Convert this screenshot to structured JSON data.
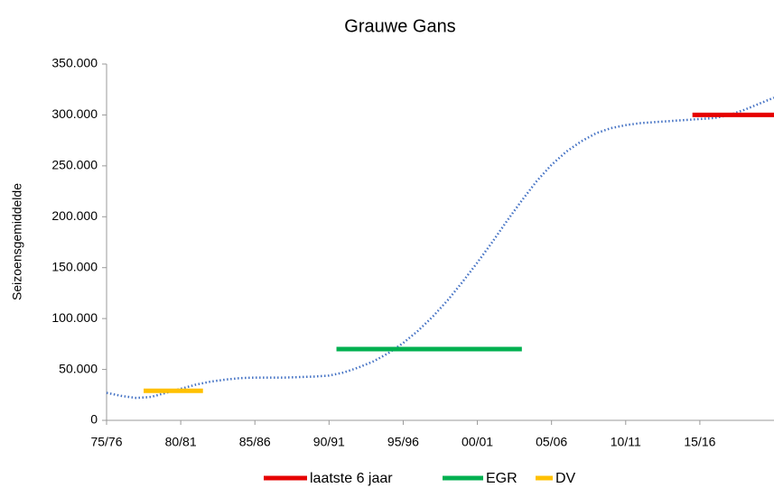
{
  "chart_data": {
    "type": "line",
    "title": "Grauwe Gans",
    "y_label": "Seizoensgemiddelde",
    "xlim": [
      1975,
      2020
    ],
    "xticks": [
      {
        "value": 1975,
        "label": "75/76"
      },
      {
        "value": 1980,
        "label": "80/81"
      },
      {
        "value": 1985,
        "label": "85/86"
      },
      {
        "value": 1990,
        "label": "90/91"
      },
      {
        "value": 1995,
        "label": "95/96"
      },
      {
        "value": 2000,
        "label": "00/01"
      },
      {
        "value": 2005,
        "label": "05/06"
      },
      {
        "value": 2010,
        "label": "10/11"
      },
      {
        "value": 2015,
        "label": "15/16"
      }
    ],
    "ylim": [
      0,
      350000
    ],
    "yticks": [
      0,
      {
        "value": 50000,
        "label": "50.000"
      },
      {
        "value": 100000,
        "label": "100.000"
      },
      {
        "value": 150000,
        "label": "150.000"
      },
      {
        "value": 200000,
        "label": "200.000"
      },
      {
        "value": 250000,
        "label": "250.000"
      },
      {
        "value": 300000,
        "label": "300.000"
      },
      {
        "value": 350000,
        "label": "350.000"
      }
    ],
    "trend": {
      "color": "#4472c4",
      "style": "dotted",
      "x": [
        1975,
        1976,
        1977,
        1978,
        1979,
        1980,
        1981,
        1982,
        1983,
        1984,
        1985,
        1986,
        1987,
        1988,
        1989,
        1990,
        1991,
        1992,
        1993,
        1994,
        1995,
        1996,
        1997,
        1998,
        1999,
        2000,
        2001,
        2002,
        2003,
        2004,
        2005,
        2006,
        2007,
        2008,
        2009,
        2010,
        2011,
        2012,
        2013,
        2014,
        2015,
        2016,
        2017,
        2018,
        2019,
        2020
      ],
      "values": [
        27000,
        24000,
        22000,
        23000,
        27000,
        31000,
        35000,
        38000,
        40000,
        41500,
        42000,
        42000,
        42000,
        42500,
        43000,
        44000,
        47000,
        52000,
        58000,
        66000,
        76000,
        88000,
        102000,
        118000,
        136000,
        155000,
        175000,
        196000,
        216000,
        235000,
        251000,
        264000,
        274000,
        282000,
        287000,
        290000,
        292000,
        293000,
        294000,
        295000,
        296000,
        297000,
        300000,
        305000,
        311000,
        317000
      ]
    },
    "series": [
      {
        "name": "laatste 6 jaar",
        "color": "#e60000",
        "x": [
          2014.5,
          2020
        ],
        "values": [
          300000,
          300000
        ]
      },
      {
        "name": "EGR",
        "color": "#00b050",
        "x": [
          1990.5,
          2003
        ],
        "values": [
          70000,
          70000
        ]
      },
      {
        "name": "DV",
        "color": "#ffc000",
        "x": [
          1977.5,
          1981.5
        ],
        "values": [
          29000,
          29000
        ]
      }
    ]
  }
}
